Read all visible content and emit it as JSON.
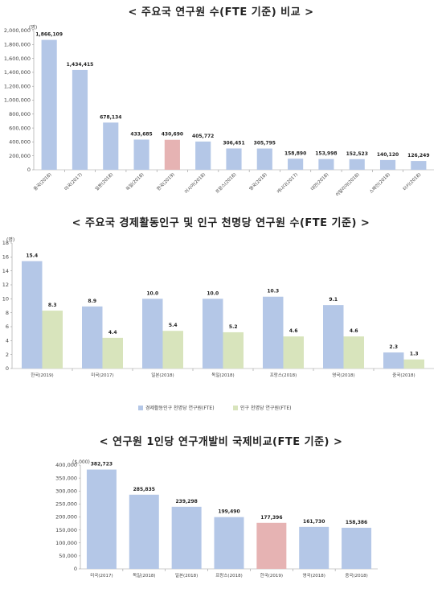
{
  "titles": [
    "< 주요국 연구원 수(FTE 기준) 비교 >",
    "< 주요국 경제활동인구 및 인구 천명당 연구원 수(FTE 기준) >",
    "< 연구원 1인당 연구개발비 국제비교(FTE 기준) >"
  ],
  "chart_data": [
    {
      "type": "bar",
      "title": "< 주요국 연구원 수(FTE 기준) 비교 >",
      "unit": "(명)",
      "ylim": [
        0,
        2000000
      ],
      "yticks": [
        0,
        200000,
        400000,
        600000,
        800000,
        1000000,
        1200000,
        1400000,
        1600000,
        1800000,
        2000000
      ],
      "ytick_labels": [
        "0",
        "200,000",
        "400,000",
        "600,000",
        "800,000",
        "1,000,000",
        "1,200,000",
        "1,400,000",
        "1,600,000",
        "1,800,000",
        "2,000,000"
      ],
      "categories": [
        "중국(2018)",
        "미국(2017)",
        "일본(2018)",
        "독일(2018)",
        "한국(2019)",
        "러시아(2018)",
        "프랑스(2018)",
        "영국(2018)",
        "캐나다(2017)",
        "대만(2018)",
        "이탈리아(2018)",
        "스페인(2018)",
        "터키(2018)"
      ],
      "values": [
        1866109,
        1434415,
        678134,
        433685,
        430690,
        405772,
        306451,
        305795,
        158890,
        153998,
        152523,
        140120,
        126249
      ],
      "value_labels": [
        "1,866,109",
        "1,434,415",
        "678,134",
        "433,685",
        "430,690",
        "405,772",
        "306,451",
        "305,795",
        "158,890",
        "153,998",
        "152,523",
        "140,120",
        "126,249"
      ],
      "highlight_index": 4,
      "colors": {
        "bar": "#b4c7e7",
        "highlight": "#e6b3b3"
      },
      "grid": false
    },
    {
      "type": "bar",
      "title": "< 주요국 경제활동인구 및 인구 천명당 연구원 수(FTE 기준) >",
      "unit": "(명)",
      "ylim": [
        0,
        18
      ],
      "yticks": [
        0,
        2,
        4,
        6,
        8,
        10,
        12,
        14,
        16,
        18
      ],
      "ytick_labels": [
        "0",
        "2",
        "4",
        "6",
        "8",
        "10",
        "12",
        "14",
        "16",
        "18"
      ],
      "categories": [
        "한국(2019)",
        "미국(2017)",
        "일본(2018)",
        "독일(2018)",
        "프랑스(2018)",
        "영국(2018)",
        "중국(2018)"
      ],
      "series": [
        {
          "name": "경제활동인구 천명당 연구원(FTE)",
          "values": [
            15.4,
            8.9,
            10.0,
            10.0,
            10.3,
            9.1,
            2.3
          ],
          "value_labels": [
            "15.4",
            "8.9",
            "10.0",
            "10.0",
            "10.3",
            "9.1",
            "2.3"
          ],
          "color": "#b4c7e7"
        },
        {
          "name": "인구 천명당 연구원(FTE)",
          "values": [
            8.3,
            4.4,
            5.4,
            5.2,
            4.6,
            4.6,
            1.3
          ],
          "value_labels": [
            "8.3",
            "4.4",
            "5.4",
            "5.2",
            "4.6",
            "4.6",
            "1.3"
          ],
          "color": "#d8e4bc"
        }
      ],
      "legend_position": "bottom",
      "grid": false
    },
    {
      "type": "bar",
      "title": "< 연구원 1인당 연구개발비 국제비교(FTE 기준) >",
      "unit": "($,000)",
      "ylim": [
        0,
        400000
      ],
      "yticks": [
        0,
        50000,
        100000,
        150000,
        200000,
        250000,
        300000,
        350000,
        400000
      ],
      "ytick_labels": [
        "0",
        "50,000",
        "100,000",
        "150,000",
        "200,000",
        "250,000",
        "300,000",
        "350,000",
        "400,000"
      ],
      "categories": [
        "미국(2017)",
        "독일(2018)",
        "일본(2018)",
        "프랑스(2018)",
        "한국(2019)",
        "영국(2018)",
        "중국(2018)"
      ],
      "values": [
        382723,
        285835,
        239298,
        199490,
        177396,
        161730,
        158386
      ],
      "value_labels": [
        "382,723",
        "285,835",
        "239,298",
        "199,490",
        "177,396",
        "161,730",
        "158,386"
      ],
      "highlight_index": 4,
      "colors": {
        "bar": "#b4c7e7",
        "highlight": "#e6b3b3"
      },
      "grid": false
    }
  ]
}
